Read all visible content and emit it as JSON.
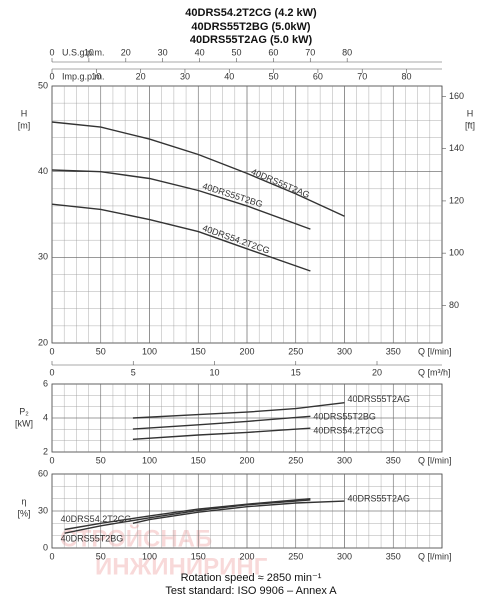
{
  "header": {
    "lines": [
      "40DRS54.2T2CG (4.2 kW)",
      "40DRS55T2BG (5.0kW)",
      "40DRS55T2AG (5.0 kW)"
    ]
  },
  "watermark": {
    "lines": [
      "СТРОЙСНАБ",
      "ИНЖИНИРИНГ"
    ]
  },
  "chart_data": [
    {
      "type": "line",
      "xlabel": "Q [l/min]",
      "xlim": [
        0,
        400
      ],
      "xticks": [
        0,
        50,
        100,
        150,
        200,
        250,
        300,
        350
      ],
      "ylabel": "H",
      "yunit": "[m]",
      "ylim": [
        20,
        50
      ],
      "yticks": [
        20,
        30,
        40,
        50
      ],
      "y2label": "H",
      "y2unit": "[ft]",
      "y2lim": [
        65.6,
        164
      ],
      "y2ticks": [
        80,
        100,
        120,
        140,
        160
      ],
      "top_axes": [
        {
          "label": "U.S.g.p.m.",
          "lim": [
            0,
            105.7
          ],
          "ticks": [
            0,
            10,
            20,
            30,
            40,
            50,
            60,
            70,
            80
          ]
        },
        {
          "label": "Imp.g.p.m.",
          "lim": [
            0,
            88
          ],
          "ticks": [
            0,
            10,
            20,
            30,
            40,
            50,
            60,
            70,
            80
          ]
        }
      ],
      "bottom_axis": {
        "label": "Q [m³/h]",
        "lim": [
          0,
          24
        ],
        "ticks": [
          0,
          5,
          10,
          15,
          20
        ]
      },
      "grid": true,
      "series": [
        {
          "name": "40DRS55T2AG",
          "color": "#333333",
          "x": [
            0,
            50,
            100,
            150,
            200,
            250,
            300
          ],
          "values": [
            45.8,
            45.2,
            43.8,
            42,
            39.8,
            37.4,
            34.8
          ]
        },
        {
          "name": "40DRS55T2BG",
          "color": "#333333",
          "x": [
            0,
            50,
            100,
            150,
            200,
            265
          ],
          "values": [
            40.2,
            40,
            39.2,
            37.8,
            36,
            33.3
          ]
        },
        {
          "name": "40DRS54.2T2CG",
          "color": "#333333",
          "x": [
            0,
            50,
            100,
            150,
            200,
            265
          ],
          "values": [
            36.2,
            35.6,
            34.4,
            33,
            31,
            28.4
          ]
        }
      ]
    },
    {
      "type": "line",
      "xlabel": "Q [l/min]",
      "xlim": [
        0,
        400
      ],
      "xticks": [
        0,
        50,
        100,
        150,
        200,
        250,
        300,
        350
      ],
      "ylabel": "P₂",
      "yunit": "[kW]",
      "ylim": [
        2,
        6
      ],
      "yticks": [
        2,
        4,
        6
      ],
      "grid": true,
      "series": [
        {
          "name": "40DRS55T2AG",
          "color": "#333333",
          "x": [
            83,
            150,
            200,
            250,
            300
          ],
          "values": [
            4,
            4.2,
            4.35,
            4.55,
            4.9
          ]
        },
        {
          "name": "40DRS55T2BG",
          "color": "#333333",
          "x": [
            83,
            150,
            200,
            265
          ],
          "values": [
            3.35,
            3.6,
            3.8,
            4.1
          ]
        },
        {
          "name": "40DRS54.2T2CG",
          "color": "#333333",
          "x": [
            83,
            150,
            200,
            265
          ],
          "values": [
            2.75,
            3,
            3.15,
            3.4
          ]
        }
      ]
    },
    {
      "type": "line",
      "xlabel": "Q [l/min]",
      "xlim": [
        0,
        400
      ],
      "xticks": [
        0,
        50,
        100,
        150,
        200,
        250,
        300,
        350
      ],
      "ylabel": "η",
      "yunit": "[%]",
      "ylim": [
        0,
        60
      ],
      "yticks": [
        0,
        30,
        60
      ],
      "grid": true,
      "series": [
        {
          "name": "40DRS55T2AG",
          "color": "#333333",
          "x": [
            83,
            100,
            150,
            200,
            250,
            300
          ],
          "values": [
            20,
            23,
            29,
            33.5,
            36.5,
            38
          ]
        },
        {
          "name": "40DRS54.2T2CG",
          "color": "#333333",
          "x": [
            13,
            50,
            100,
            150,
            200,
            265
          ],
          "values": [
            15,
            20,
            26,
            31.5,
            35.5,
            40
          ]
        },
        {
          "name": "40DRS55T2BG",
          "color": "#333333",
          "x": [
            13,
            50,
            100,
            150,
            200,
            265
          ],
          "values": [
            12,
            18,
            24.5,
            30.5,
            35,
            39
          ]
        }
      ]
    }
  ],
  "footer": {
    "lines": [
      "Rotation speed ≈ 2850 min⁻¹",
      "Test standard: ISO 9906 – Annex A"
    ]
  }
}
